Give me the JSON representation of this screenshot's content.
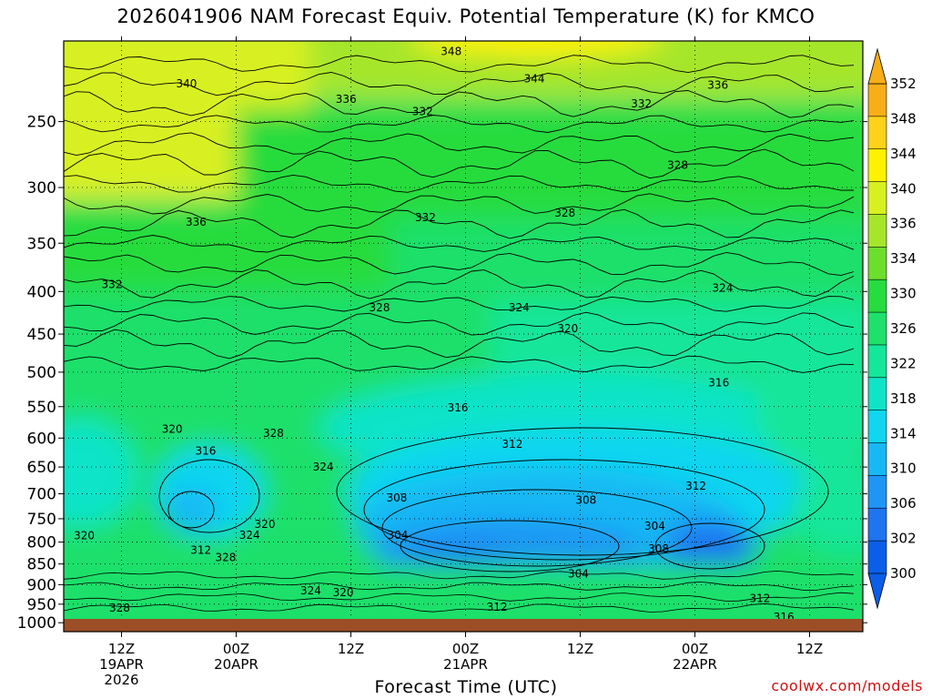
{
  "title": "2026041906 NAM Forecast Equiv. Potential Temperature (K) for KMCO",
  "xlabel": "Forecast Time (UTC)",
  "credit": "coolwx.com/models",
  "chart_data": {
    "type": "heatmap",
    "title": "2026041906 NAM Forecast Equiv. Potential Temperature (K) for KMCO",
    "xlabel": "Forecast Time (UTC)",
    "ylabel": "",
    "x_ticks": [
      {
        "lines": [
          "12Z",
          "19APR",
          "2026"
        ],
        "hour": 6
      },
      {
        "lines": [
          "00Z",
          "20APR"
        ],
        "hour": 18
      },
      {
        "lines": [
          "12Z"
        ],
        "hour": 30
      },
      {
        "lines": [
          "00Z",
          "21APR"
        ],
        "hour": 42
      },
      {
        "lines": [
          "12Z"
        ],
        "hour": 54
      },
      {
        "lines": [
          "00Z",
          "22APR"
        ],
        "hour": 66
      },
      {
        "lines": [
          "12Z"
        ],
        "hour": 78
      }
    ],
    "xlim_hours": [
      0,
      84
    ],
    "y_ticks": [
      250,
      300,
      350,
      400,
      450,
      500,
      550,
      600,
      650,
      700,
      750,
      800,
      850,
      900,
      950,
      1000
    ],
    "ylim_hpa": [
      200,
      1025
    ],
    "y_scale": "log",
    "colorbar_labels": [
      352,
      348,
      344,
      340,
      336,
      334,
      330,
      326,
      322,
      318,
      314,
      310,
      306,
      302,
      300
    ],
    "colorbar_levels": [
      300,
      302,
      306,
      310,
      314,
      318,
      322,
      326,
      330,
      334,
      336,
      340,
      344,
      348,
      352
    ],
    "colorbar_colors": [
      "#0a5ee8",
      "#1f74f0",
      "#1e96f4",
      "#17b8f4",
      "#10d6f0",
      "#10e4c8",
      "#14e69a",
      "#1ee06a",
      "#26dc3e",
      "#6cde2c",
      "#a6e62a",
      "#d8f020",
      "#fef200",
      "#ffd21a",
      "#f8ae18"
    ],
    "ground_color": "#9c4e26",
    "contour_labels": [
      {
        "text": "348",
        "hour": 40.5,
        "p": 206
      },
      {
        "text": "344",
        "hour": 49.2,
        "p": 222
      },
      {
        "text": "340",
        "hour": 12.8,
        "p": 225
      },
      {
        "text": "336",
        "hour": 29.5,
        "p": 235
      },
      {
        "text": "336",
        "hour": 68.4,
        "p": 226
      },
      {
        "text": "332",
        "hour": 37.5,
        "p": 243
      },
      {
        "text": "332",
        "hour": 60.4,
        "p": 238
      },
      {
        "text": "328",
        "hour": 64.2,
        "p": 282
      },
      {
        "text": "336",
        "hour": 13.8,
        "p": 330
      },
      {
        "text": "332",
        "hour": 37.8,
        "p": 326
      },
      {
        "text": "328",
        "hour": 52.4,
        "p": 322
      },
      {
        "text": "332",
        "hour": 5.0,
        "p": 392
      },
      {
        "text": "324",
        "hour": 68.9,
        "p": 396
      },
      {
        "text": "328",
        "hour": 33.0,
        "p": 418
      },
      {
        "text": "324",
        "hour": 47.6,
        "p": 418
      },
      {
        "text": "320",
        "hour": 52.7,
        "p": 443
      },
      {
        "text": "316",
        "hour": 68.5,
        "p": 515
      },
      {
        "text": "316",
        "hour": 41.2,
        "p": 552
      },
      {
        "text": "320",
        "hour": 11.3,
        "p": 585
      },
      {
        "text": "328",
        "hour": 21.9,
        "p": 592
      },
      {
        "text": "312",
        "hour": 46.9,
        "p": 610
      },
      {
        "text": "316",
        "hour": 14.8,
        "p": 622
      },
      {
        "text": "324",
        "hour": 27.1,
        "p": 650
      },
      {
        "text": "312",
        "hour": 66.1,
        "p": 685
      },
      {
        "text": "308",
        "hour": 34.8,
        "p": 708
      },
      {
        "text": "308",
        "hour": 54.6,
        "p": 712
      },
      {
        "text": "304",
        "hour": 61.8,
        "p": 765
      },
      {
        "text": "304",
        "hour": 34.9,
        "p": 785
      },
      {
        "text": "320",
        "hour": 2.1,
        "p": 786
      },
      {
        "text": "320",
        "hour": 21.0,
        "p": 762
      },
      {
        "text": "324",
        "hour": 19.4,
        "p": 785
      },
      {
        "text": "312",
        "hour": 14.3,
        "p": 818
      },
      {
        "text": "308",
        "hour": 62.2,
        "p": 815
      },
      {
        "text": "328",
        "hour": 16.9,
        "p": 835
      },
      {
        "text": "304",
        "hour": 53.8,
        "p": 873
      },
      {
        "text": "324",
        "hour": 25.8,
        "p": 915
      },
      {
        "text": "320",
        "hour": 29.2,
        "p": 920
      },
      {
        "text": "312",
        "hour": 72.8,
        "p": 935
      },
      {
        "text": "312",
        "hour": 45.3,
        "p": 958
      },
      {
        "text": "328",
        "hour": 5.8,
        "p": 960
      },
      {
        "text": "316",
        "hour": 75.3,
        "p": 985
      }
    ]
  }
}
